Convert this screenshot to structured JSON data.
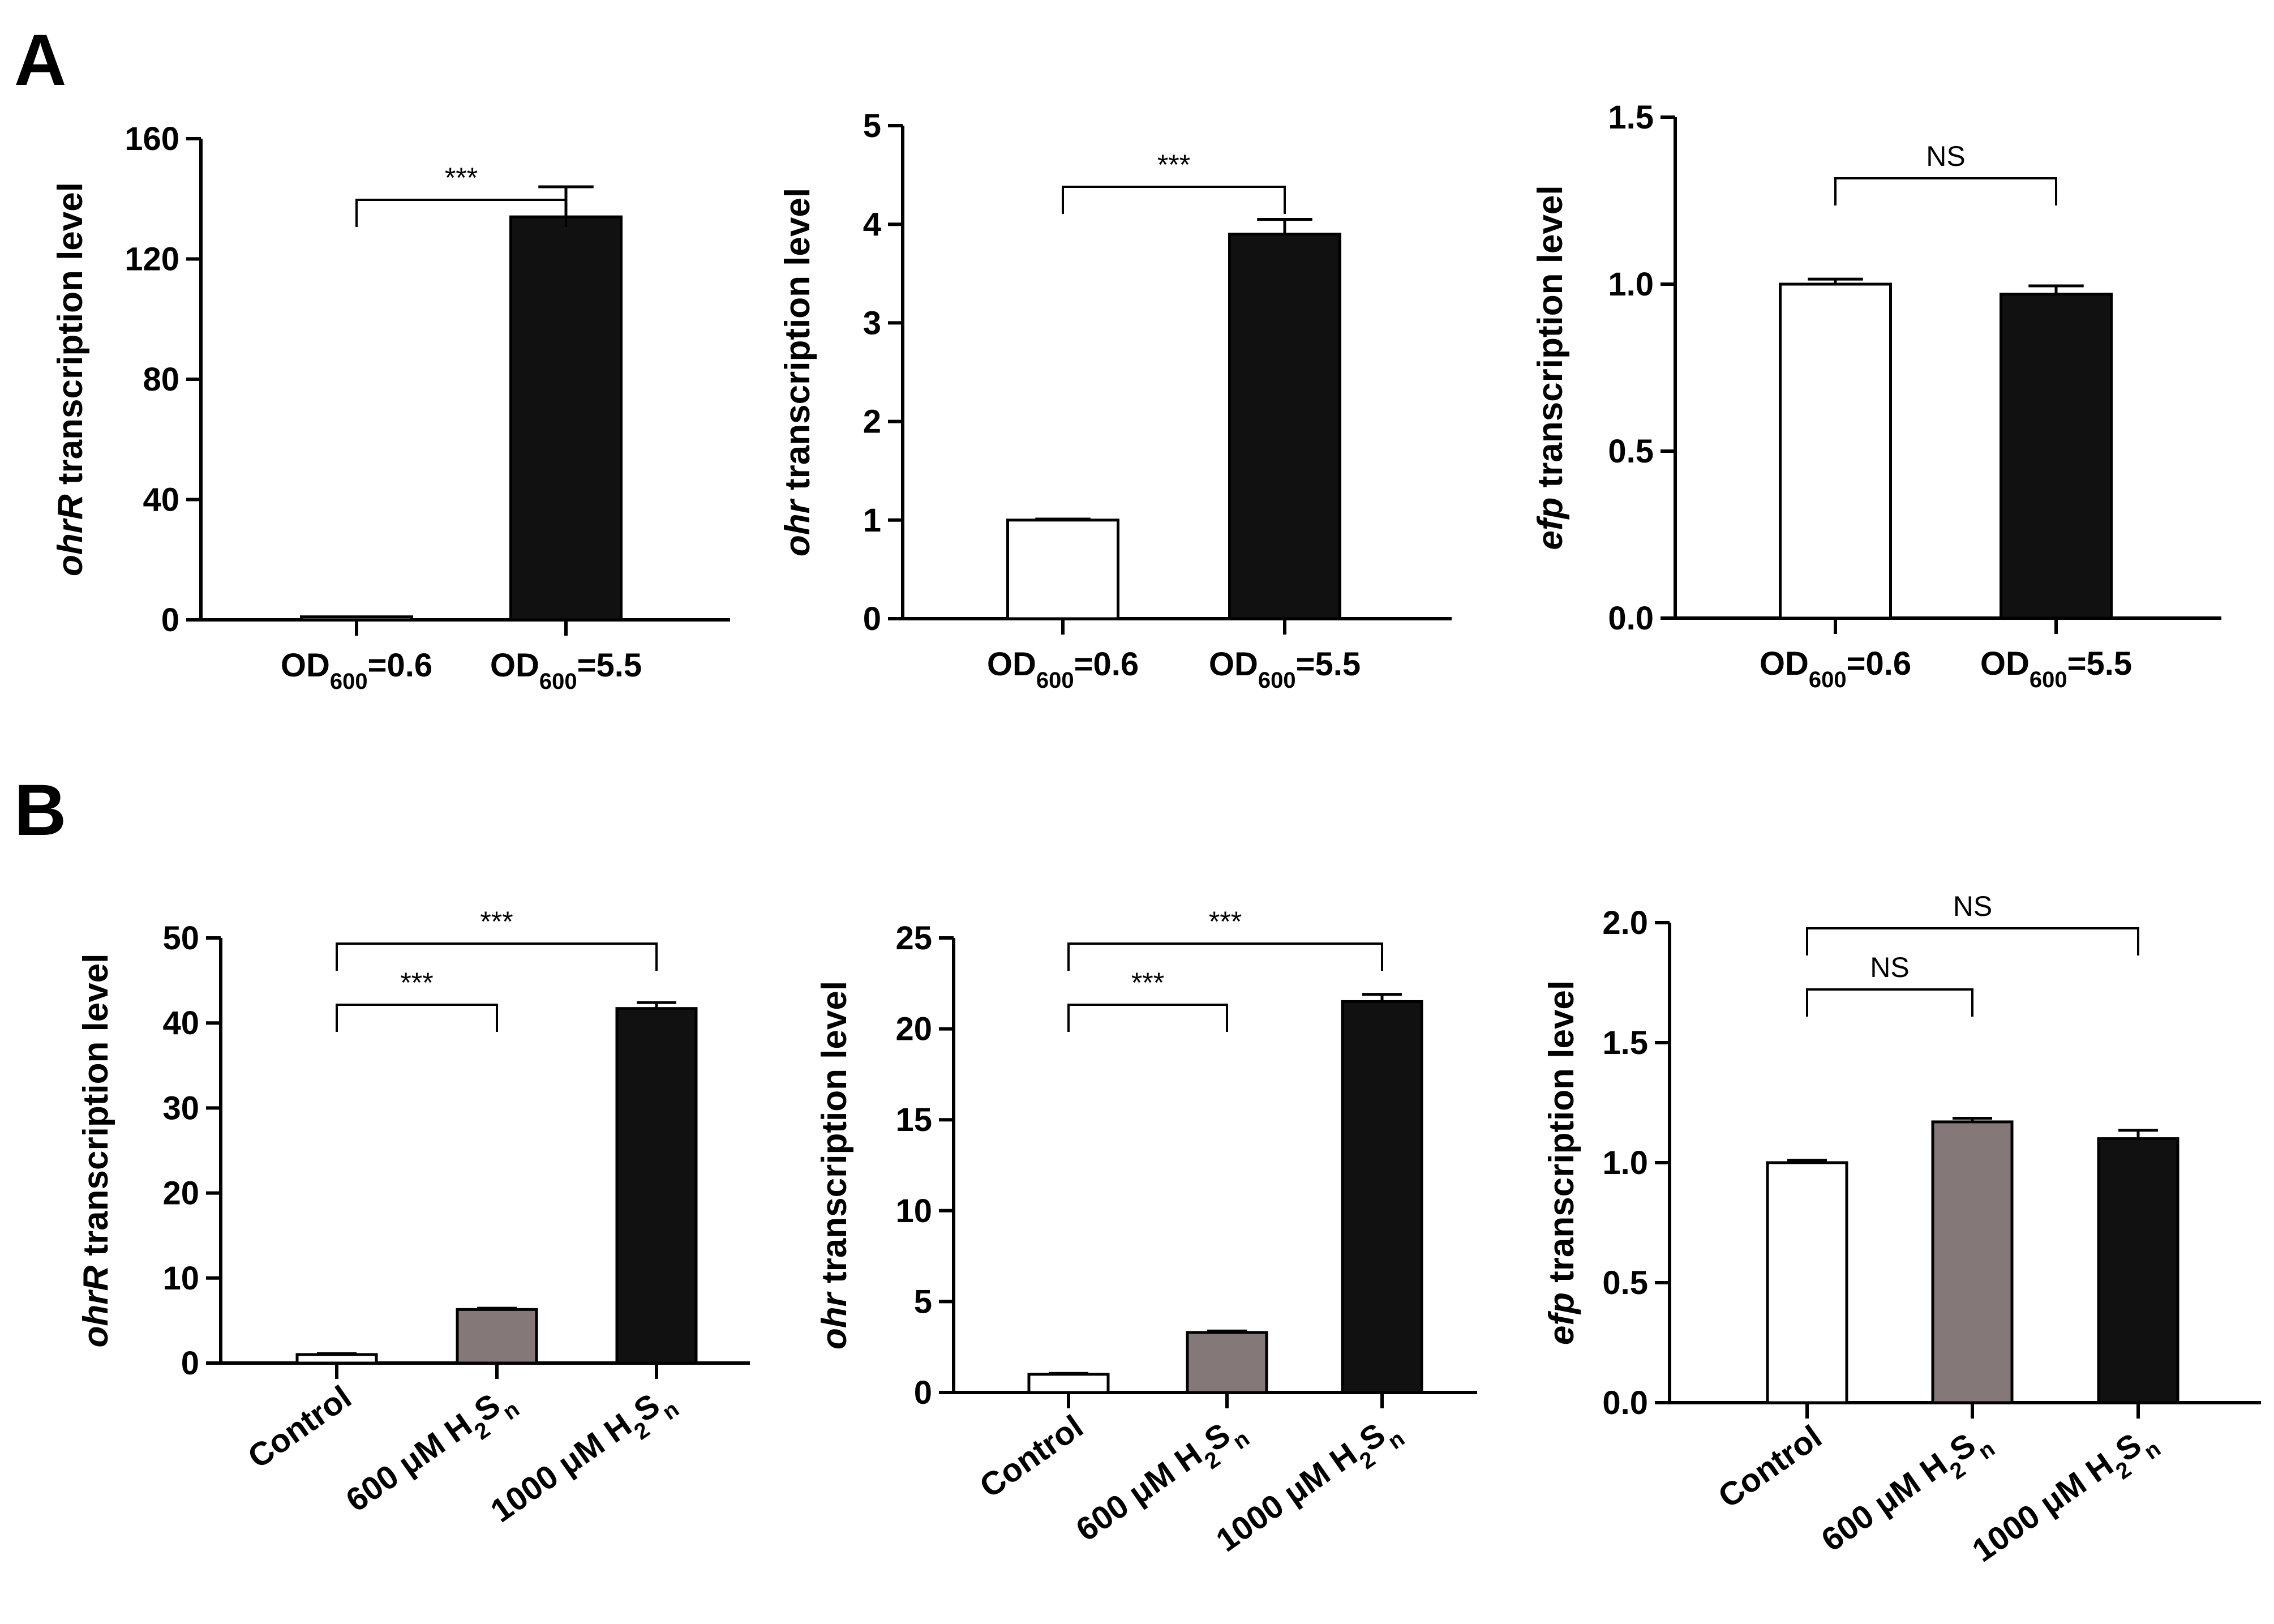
{
  "panel_labels": [
    "A",
    "B"
  ],
  "chart_data": [
    {
      "type": "bar",
      "panel": "A",
      "categories": [
        {
          "main": "OD",
          "sub": "600",
          "suffix": "=0.6"
        },
        {
          "main": "OD",
          "sub": "600",
          "suffix": "=5.5"
        }
      ],
      "values": [
        1,
        134
      ],
      "errors": [
        0,
        10
      ],
      "colors": [
        "#ffffff",
        "#111111"
      ],
      "ylabel_gene": "ohrR",
      "ylabel_rest": " transcription level",
      "ylim": [
        0,
        160
      ],
      "yticks": [
        "0",
        "40",
        "80",
        "120",
        "160"
      ],
      "significance": [
        {
          "from": 0,
          "to": 1,
          "label": "***",
          "level": 1
        }
      ]
    },
    {
      "type": "bar",
      "panel": "A",
      "categories": [
        {
          "main": "OD",
          "sub": "600",
          "suffix": "=0.6"
        },
        {
          "main": "OD",
          "sub": "600",
          "suffix": "=5.5"
        }
      ],
      "values": [
        1,
        3.9
      ],
      "errors": [
        0.01,
        0.15
      ],
      "colors": [
        "#ffffff",
        "#111111"
      ],
      "ylabel_gene": "ohr",
      "ylabel_rest": " transcription level",
      "ylim": [
        0,
        5
      ],
      "yticks": [
        "0",
        "1",
        "2",
        "3",
        "4",
        "5"
      ],
      "significance": [
        {
          "from": 0,
          "to": 1,
          "label": "***",
          "level": 1
        }
      ]
    },
    {
      "type": "bar",
      "panel": "A",
      "categories": [
        {
          "main": "OD",
          "sub": "600",
          "suffix": "=0.6"
        },
        {
          "main": "OD",
          "sub": "600",
          "suffix": "=5.5"
        }
      ],
      "values": [
        1.0,
        0.97
      ],
      "errors": [
        0.015,
        0.025
      ],
      "colors": [
        "#ffffff",
        "#111111"
      ],
      "ylabel_gene": "efp",
      "ylabel_rest": " transcription level",
      "ylim": [
        0,
        1.5
      ],
      "yticks": [
        "0.0",
        "0.5",
        "1.0",
        "1.5"
      ],
      "significance": [
        {
          "from": 0,
          "to": 1,
          "label": "NS",
          "level": 1
        }
      ]
    },
    {
      "type": "bar",
      "panel": "B",
      "categories": [
        {
          "main": "Control"
        },
        {
          "main": "600 μM H",
          "sub": "2",
          "suffix": "S",
          "sub2": "n"
        },
        {
          "main": "1000 μM H",
          "sub": "2",
          "suffix": "S",
          "sub2": "n"
        }
      ],
      "values": [
        1,
        6.3,
        41.7
      ],
      "errors": [
        0.1,
        0.15,
        0.7
      ],
      "colors": [
        "#ffffff",
        "#857878",
        "#111111"
      ],
      "ylabel_gene": "ohrR",
      "ylabel_rest": " transcription level",
      "ylim": [
        0,
        50
      ],
      "yticks": [
        "0",
        "10",
        "20",
        "30",
        "40",
        "50"
      ],
      "significance": [
        {
          "from": 0,
          "to": 1,
          "label": "***",
          "level": 1
        },
        {
          "from": 0,
          "to": 2,
          "label": "***",
          "level": 2
        }
      ]
    },
    {
      "type": "bar",
      "panel": "B",
      "categories": [
        {
          "main": "Control"
        },
        {
          "main": "600 μM H",
          "sub": "2",
          "suffix": "S",
          "sub2": "n"
        },
        {
          "main": "1000 μM H",
          "sub": "2",
          "suffix": "S",
          "sub2": "n"
        }
      ],
      "values": [
        1,
        3.3,
        21.5
      ],
      "errors": [
        0.05,
        0.08,
        0.4
      ],
      "colors": [
        "#ffffff",
        "#857878",
        "#111111"
      ],
      "ylabel_gene": "ohr",
      "ylabel_rest": " transcription level",
      "ylim": [
        0,
        25
      ],
      "yticks": [
        "0",
        "5",
        "10",
        "15",
        "20",
        "25"
      ],
      "significance": [
        {
          "from": 0,
          "to": 1,
          "label": "***",
          "level": 1
        },
        {
          "from": 0,
          "to": 2,
          "label": "***",
          "level": 2
        }
      ]
    },
    {
      "type": "bar",
      "panel": "B",
      "categories": [
        {
          "main": "Control"
        },
        {
          "main": "600 μM H",
          "sub": "2",
          "suffix": "S",
          "sub2": "n"
        },
        {
          "main": "1000 μM H",
          "sub": "2",
          "suffix": "S",
          "sub2": "n"
        }
      ],
      "values": [
        1.0,
        1.17,
        1.1
      ],
      "errors": [
        0.01,
        0.015,
        0.035
      ],
      "colors": [
        "#ffffff",
        "#857878",
        "#111111"
      ],
      "ylabel_gene": "efp",
      "ylabel_rest": " transcription level",
      "ylim": [
        0,
        2.0
      ],
      "yticks": [
        "0.0",
        "0.5",
        "1.0",
        "1.5",
        "2.0"
      ],
      "significance": [
        {
          "from": 0,
          "to": 1,
          "label": "NS",
          "level": 1
        },
        {
          "from": 0,
          "to": 2,
          "label": "NS",
          "level": 2
        }
      ]
    }
  ]
}
